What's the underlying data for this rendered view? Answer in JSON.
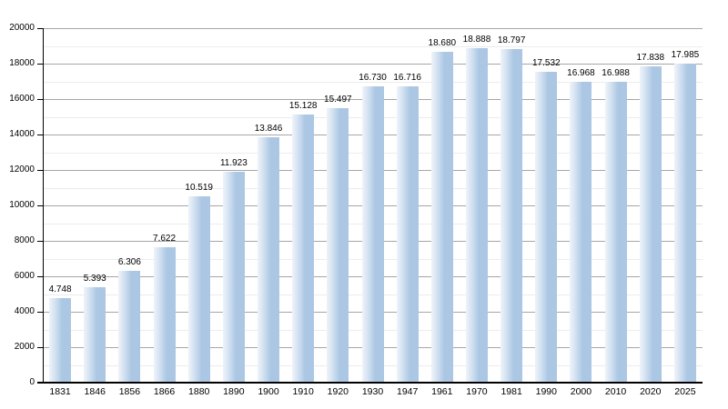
{
  "chart_data": {
    "type": "bar",
    "title": "",
    "xlabel": "",
    "ylabel": "",
    "categories": [
      "1831",
      "1846",
      "1856",
      "1866",
      "1880",
      "1890",
      "1900",
      "1910",
      "1920",
      "1930",
      "1947",
      "1961",
      "1970",
      "1981",
      "1990",
      "2000",
      "2010",
      "2020",
      "2025"
    ],
    "values": [
      4748,
      5393,
      6306,
      7622,
      10519,
      11923,
      13846,
      15128,
      15497,
      16730,
      16716,
      18680,
      18888,
      18797,
      17532,
      16968,
      16988,
      17838,
      17985
    ],
    "value_labels": [
      "4.748",
      "5.393",
      "6.306",
      "7.622",
      "10.519",
      "11.923",
      "13.846",
      "15.128",
      "15.497",
      "16.730",
      "16.716",
      "18.680",
      "18.888",
      "18.797",
      "17.532",
      "16.968",
      "16.988",
      "17.838",
      "17.985"
    ],
    "ylim": [
      0,
      20000
    ],
    "y_major_step": 2000,
    "y_minor_step": 1000,
    "y_tick_labels": [
      "0",
      "2000",
      "4000",
      "6000",
      "8000",
      "10000",
      "12000",
      "14000",
      "16000",
      "18000",
      "20000"
    ],
    "grid": "on",
    "legend": "none",
    "colors": {
      "bar_main": "#abc7e3",
      "bar_light_edge": "#d8e5f3",
      "major_grid": "#a6a6a6",
      "minor_grid": "#ececec",
      "axis": "#000000",
      "text": "#000000",
      "background": "#ffffff"
    }
  }
}
